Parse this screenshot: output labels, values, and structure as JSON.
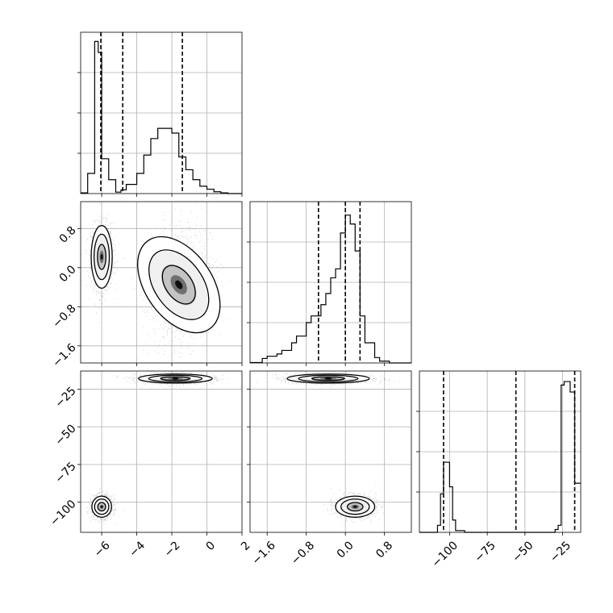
{
  "chart_data": {
    "type": "corner",
    "panels_grid": "3x3 lower-triangular",
    "background": "#ffffff",
    "hist_color": "#000000",
    "grid": true,
    "params": [
      {
        "xlim": [
          -7.2,
          2.0
        ],
        "ticks": [
          -6,
          -4,
          -2,
          0,
          2
        ],
        "tick_labels": [
          "−6",
          "−4",
          "−2",
          "0",
          "2"
        ],
        "quantiles": [
          -6.05,
          -4.8,
          -1.4
        ],
        "hist": {
          "bin_edges": [
            -7.2,
            -6.8,
            -6.4,
            -6.2,
            -6.0,
            -5.6,
            -5.2,
            -4.9,
            -4.6,
            -4.0,
            -3.6,
            -3.2,
            -2.8,
            -2.4,
            -2.0,
            -1.6,
            -1.2,
            -0.8,
            -0.4,
            0.0,
            0.4,
            0.8,
            1.2,
            2.0
          ],
          "counts": [
            2,
            55,
            415,
            385,
            95,
            38,
            4,
            10,
            25,
            55,
            105,
            150,
            178,
            178,
            165,
            100,
            65,
            38,
            20,
            12,
            5,
            2,
            0
          ],
          "ylim": [
            0,
            440
          ]
        }
      },
      {
        "xlim": [
          -1.95,
          1.35
        ],
        "ticks": [
          -1.6,
          -0.8,
          0.0,
          0.8
        ],
        "tick_labels": [
          "−1.6",
          "−0.8",
          "0.0",
          "0.8"
        ],
        "quantiles": [
          -0.55,
          0.0,
          0.3
        ],
        "hist": {
          "bin_edges": [
            -1.95,
            -1.7,
            -1.6,
            -1.4,
            -1.3,
            -1.1,
            -1.0,
            -0.8,
            -0.7,
            -0.5,
            -0.4,
            -0.3,
            -0.2,
            -0.1,
            0.0,
            0.1,
            0.2,
            0.3,
            0.4,
            0.6,
            0.7,
            0.9,
            1.35
          ],
          "counts": [
            1,
            10,
            15,
            20,
            28,
            45,
            60,
            90,
            105,
            130,
            155,
            190,
            210,
            290,
            330,
            310,
            250,
            105,
            45,
            12,
            4,
            0
          ],
          "ylim": [
            0,
            360
          ]
        }
      },
      {
        "xlim": [
          -120,
          -13
        ],
        "ticks": [
          -100,
          -75,
          -50,
          -25
        ],
        "tick_labels": [
          "−100",
          "−75",
          "−50",
          "−25"
        ],
        "quantiles": [
          -104,
          -56,
          -17
        ],
        "hist": {
          "bin_edges": [
            -120,
            -108,
            -106,
            -104,
            -102,
            -100,
            -98,
            -96,
            -90,
            -30,
            -28,
            -26,
            -24,
            -20,
            -17,
            -15,
            -13
          ],
          "counts": [
            0,
            20,
            110,
            200,
            200,
            130,
            35,
            5,
            0,
            8,
            20,
            420,
            430,
            400,
            140,
            140
          ],
          "ylim": [
            0,
            460
          ]
        }
      }
    ],
    "pairs": [
      {
        "x_param": 0,
        "y_param": 1,
        "ylim": [
          -1.95,
          1.35
        ],
        "y_ticks": [
          -1.6,
          -0.8,
          0.0,
          0.8
        ],
        "y_tick_labels": [
          "−1.6",
          "−0.8",
          "0.0",
          "0.8"
        ],
        "clusters": [
          {
            "cx": -6.0,
            "cy": 0.22,
            "sx": 0.3,
            "sy": 0.32,
            "rot": 0,
            "weight": 0.48
          },
          {
            "cx": -1.6,
            "cy": -0.35,
            "sx": 0.95,
            "sy": 0.55,
            "rot": 35,
            "weight": 0.52
          }
        ]
      },
      {
        "x_param": 0,
        "y_param": 2,
        "ylim": [
          -120,
          -13
        ],
        "y_ticks": [
          -100,
          -75,
          -50,
          -25
        ],
        "y_tick_labels": [
          "−100",
          "−75",
          "−50",
          "−25"
        ],
        "clusters": [
          {
            "cx": -6.0,
            "cy": -103,
            "sx": 0.28,
            "sy": 3.5,
            "rot": 0,
            "weight": 0.48
          },
          {
            "cx": -1.8,
            "cy": -18,
            "sx": 1.05,
            "sy": 1.5,
            "rot": 0,
            "weight": 0.52
          }
        ]
      },
      {
        "x_param": 1,
        "y_param": 2,
        "ylim": [
          -120,
          -13
        ],
        "clusters": [
          {
            "cx": 0.2,
            "cy": -103,
            "sx": 0.2,
            "sy": 3.5,
            "rot": 0,
            "weight": 0.48
          },
          {
            "cx": -0.35,
            "cy": -18,
            "sx": 0.42,
            "sy": 1.5,
            "rot": 0,
            "weight": 0.52
          }
        ]
      }
    ]
  }
}
